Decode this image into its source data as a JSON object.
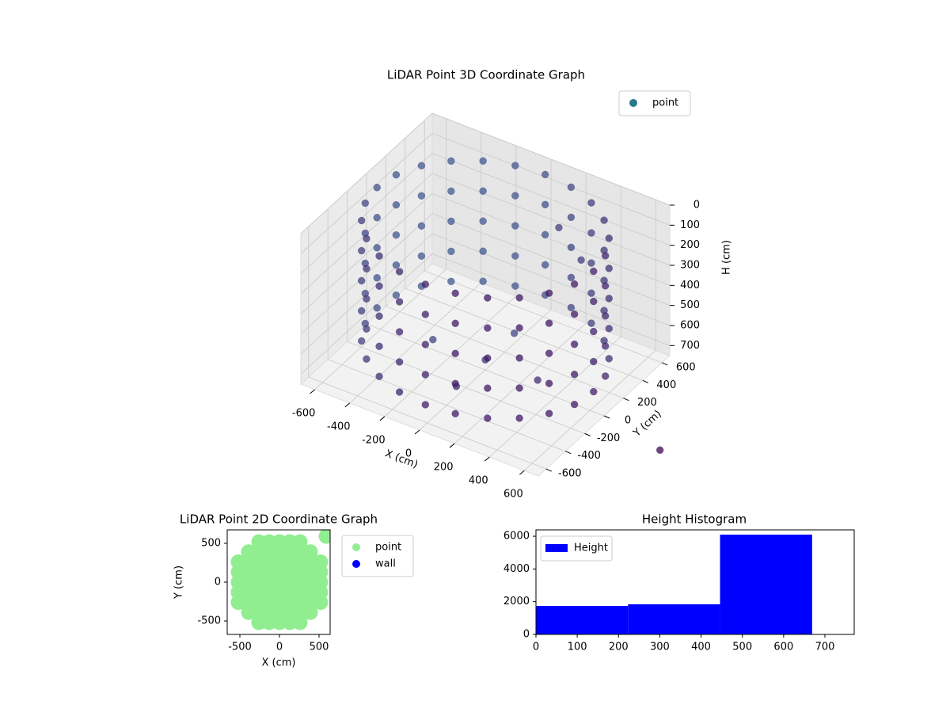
{
  "chart_data": [
    {
      "type": "scatter3d",
      "title": "LiDAR Point 3D Coordinate Graph",
      "xlabel": "X (cm)",
      "ylabel": "Y (cm)",
      "zlabel": "H (cm)",
      "series": [
        {
          "name": "point",
          "color": "#2a788e",
          "x": [
            620,
            599,
            537,
            438,
            310,
            160,
            0,
            -160,
            -310,
            -438,
            -537,
            -599,
            -620,
            -599,
            -537,
            -438,
            -310,
            -160,
            0,
            160,
            310,
            438,
            537,
            599,
            620,
            599,
            537,
            438,
            310,
            160,
            0,
            -160,
            -310,
            -438,
            -537,
            -599,
            -620,
            -599,
            -537,
            -438,
            -310,
            -160,
            0,
            160,
            310,
            438,
            537,
            599,
            620,
            599,
            537,
            438,
            310,
            160,
            0,
            -160,
            -310,
            -438,
            -537,
            -599,
            -620,
            -599,
            -537,
            -438,
            -310,
            -160,
            0,
            160,
            310,
            438,
            537,
            599,
            620,
            599,
            537,
            438,
            310,
            160,
            0,
            -160,
            -310,
            -438,
            -537,
            -599,
            -620,
            -599,
            -537,
            -438,
            -310,
            -160,
            0,
            160,
            310,
            438,
            537,
            599,
            620,
            599,
            537,
            438,
            310,
            160,
            0,
            -160,
            -310,
            -438,
            -537,
            -599,
            -620,
            -599,
            -537,
            -438,
            -310,
            -160,
            0,
            160,
            310,
            438,
            537,
            599,
            0,
            300,
            -300,
            0,
            0,
            200,
            300,
            1100
          ],
          "y": [
            0,
            160,
            310,
            438,
            537,
            599,
            620,
            599,
            537,
            438,
            310,
            160,
            0,
            -160,
            -310,
            -438,
            -537,
            -599,
            -620,
            -599,
            -537,
            -438,
            -310,
            -160,
            0,
            160,
            310,
            438,
            537,
            599,
            620,
            599,
            537,
            438,
            310,
            160,
            0,
            -160,
            -310,
            -438,
            -537,
            -599,
            -620,
            -599,
            -537,
            -438,
            -310,
            -160,
            0,
            160,
            310,
            438,
            537,
            599,
            620,
            599,
            537,
            438,
            310,
            160,
            0,
            -160,
            -310,
            -438,
            -537,
            -599,
            -620,
            -599,
            -537,
            -438,
            -310,
            -160,
            0,
            160,
            310,
            438,
            537,
            599,
            620,
            599,
            537,
            438,
            310,
            160,
            0,
            -160,
            -310,
            -438,
            -537,
            -599,
            -620,
            -599,
            -537,
            -438,
            -310,
            -160,
            0,
            160,
            310,
            438,
            537,
            599,
            620,
            599,
            537,
            438,
            310,
            160,
            0,
            -160,
            -310,
            -438,
            -537,
            -599,
            -620,
            -599,
            -537,
            -438,
            -310,
            -160,
            0,
            0,
            0,
            300,
            -300,
            400,
            450,
            -180
          ],
          "z": [
            50,
            50,
            50,
            50,
            50,
            50,
            50,
            50,
            50,
            50,
            50,
            50,
            50,
            50,
            50,
            50,
            50,
            50,
            50,
            50,
            50,
            50,
            50,
            50,
            200,
            200,
            200,
            200,
            200,
            200,
            200,
            200,
            200,
            200,
            200,
            200,
            200,
            200,
            200,
            200,
            200,
            200,
            200,
            200,
            200,
            200,
            200,
            200,
            350,
            350,
            350,
            350,
            350,
            350,
            350,
            350,
            350,
            350,
            350,
            350,
            350,
            350,
            350,
            350,
            350,
            350,
            350,
            350,
            350,
            350,
            350,
            350,
            500,
            500,
            500,
            500,
            500,
            500,
            500,
            500,
            500,
            500,
            500,
            500,
            500,
            500,
            500,
            500,
            500,
            500,
            500,
            500,
            500,
            500,
            500,
            500,
            650,
            650,
            650,
            650,
            650,
            650,
            650,
            650,
            650,
            650,
            650,
            650,
            650,
            650,
            650,
            650,
            650,
            650,
            650,
            650,
            650,
            650,
            650,
            650,
            700,
            700,
            700,
            700,
            700,
            150,
            300,
            700
          ]
        }
      ],
      "colormap": [
        "#440154",
        "#3f6f9f"
      ],
      "xlim": [
        -680,
        680
      ],
      "ylim": [
        -680,
        680
      ],
      "zlim": [
        0,
        750
      ],
      "zinverted": true,
      "xticks": [
        -600,
        -400,
        -200,
        0,
        200,
        400,
        600
      ],
      "yticks": [
        -600,
        -400,
        -200,
        0,
        200,
        400,
        600
      ],
      "zticks": [
        0,
        100,
        200,
        300,
        400,
        500,
        600,
        700
      ],
      "grid": true,
      "legend": "upper right"
    },
    {
      "type": "scatter",
      "title": "LiDAR Point 2D Coordinate Graph",
      "xlabel": "X (cm)",
      "ylabel": "Y (cm)",
      "series": [
        {
          "name": "point",
          "color": "#90ee90",
          "x": [
            -260,
            -130,
            0,
            130,
            260,
            -390,
            -260,
            -130,
            0,
            130,
            260,
            390,
            -520,
            -390,
            -260,
            -130,
            0,
            130,
            260,
            390,
            520,
            -520,
            -390,
            -260,
            -130,
            0,
            130,
            260,
            390,
            520,
            -520,
            -390,
            -260,
            -130,
            0,
            130,
            260,
            390,
            520,
            -520,
            -390,
            -260,
            -130,
            0,
            130,
            260,
            390,
            520,
            -520,
            -390,
            -260,
            -130,
            0,
            130,
            260,
            390,
            520,
            -390,
            -260,
            -130,
            0,
            130,
            260,
            390,
            -260,
            -130,
            0,
            130,
            260,
            590
          ],
          "y": [
            520,
            520,
            520,
            520,
            520,
            390,
            390,
            390,
            390,
            390,
            390,
            390,
            260,
            260,
            260,
            260,
            260,
            260,
            260,
            260,
            260,
            130,
            130,
            130,
            130,
            130,
            130,
            130,
            130,
            130,
            0,
            0,
            0,
            0,
            0,
            0,
            0,
            0,
            0,
            -130,
            -130,
            -130,
            -130,
            -130,
            -130,
            -130,
            -130,
            -130,
            -260,
            -260,
            -260,
            -260,
            -260,
            -260,
            -260,
            -260,
            -260,
            -390,
            -390,
            -390,
            -390,
            -390,
            -390,
            -390,
            -520,
            -520,
            -520,
            -520,
            -520,
            590
          ]
        },
        {
          "name": "wall",
          "color": "#0000ff",
          "x": [],
          "y": []
        }
      ],
      "xlim": [
        -660,
        640
      ],
      "ylim": [
        -673,
        673
      ],
      "xticks": [
        -500,
        0,
        500
      ],
      "yticks": [
        -500,
        0,
        500
      ],
      "legend": "outside right"
    },
    {
      "type": "histogram",
      "title": "Height Histogram",
      "series": [
        {
          "name": "Height",
          "color": "#0000ff",
          "values": [
            1740,
            1840,
            6100
          ]
        }
      ],
      "bins": [
        0,
        223,
        446,
        669
      ],
      "xlim": [
        0,
        771
      ],
      "ylim": [
        0,
        6390
      ],
      "xticks": [
        0,
        100,
        200,
        300,
        400,
        500,
        600,
        700
      ],
      "yticks": [
        0,
        2000,
        4000,
        6000
      ],
      "legend": "upper left"
    }
  ]
}
